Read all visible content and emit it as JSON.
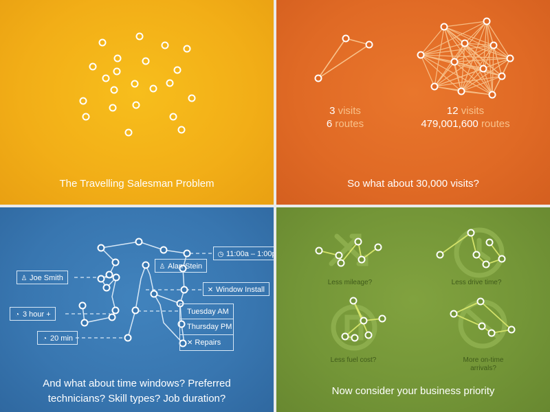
{
  "panels": {
    "tsp": {
      "caption": "The Travelling Salesman Problem"
    },
    "routes": {
      "caption": "So what about 30,000 visits?",
      "small": {
        "visits_num": "3",
        "visits_lbl": "visits",
        "routes_num": "6",
        "routes_lbl": "routes"
      },
      "large": {
        "visits_num": "12",
        "visits_lbl": "visits",
        "routes_num": "479,001,600",
        "routes_lbl": "routes"
      }
    },
    "constraints": {
      "caption_line1": "And what about time windows? Preferred",
      "caption_line2": "technicians? Skill types? Job duration?",
      "tags": {
        "time_window": "11:00a – 1:00p",
        "tech_alan": "Alan Stein",
        "tech_joe": "Joe Smith",
        "skill_window": "Window Install",
        "dur_3h": "3 hour +",
        "dur_20": "20 min"
      },
      "schedule": [
        "Tuesday AM",
        "Thursday PM",
        "Repairs"
      ]
    },
    "priority": {
      "caption": "Now consider your business priority",
      "options": [
        {
          "line1": "Less mileage?",
          "line2": ""
        },
        {
          "line1": "Less drive time?",
          "line2": ""
        },
        {
          "line1": "Less fuel cost?",
          "line2": ""
        },
        {
          "line1": "More on-time",
          "line2": "arrivals?"
        }
      ]
    }
  },
  "colors": {
    "yellow": "#f2ae17",
    "orange": "#e06a25",
    "blue": "#3876b0",
    "green": "#739537",
    "orange_label": "#f8c28b",
    "green_route": "#d4e36a"
  }
}
